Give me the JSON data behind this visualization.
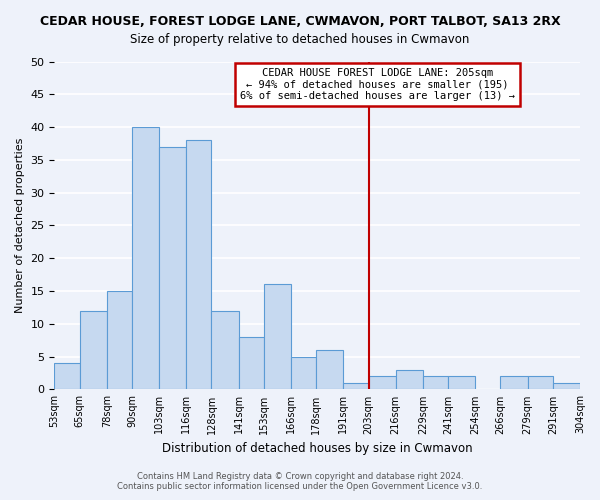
{
  "title": "CEDAR HOUSE, FOREST LODGE LANE, CWMAVON, PORT TALBOT, SA13 2RX",
  "subtitle": "Size of property relative to detached houses in Cwmavon",
  "xlabel": "Distribution of detached houses by size in Cwmavon",
  "ylabel": "Number of detached properties",
  "bar_edges": [
    53,
    65,
    78,
    90,
    103,
    116,
    128,
    141,
    153,
    166,
    178,
    191,
    203,
    216,
    229,
    241,
    254,
    266,
    279,
    291,
    304
  ],
  "bar_heights": [
    4,
    12,
    15,
    40,
    37,
    38,
    12,
    8,
    16,
    5,
    6,
    1,
    2,
    3,
    2,
    2,
    0,
    2,
    2,
    1
  ],
  "bar_color": "#c6d9f0",
  "bar_edgecolor": "#5b9bd5",
  "ylim": [
    0,
    50
  ],
  "yticks": [
    0,
    5,
    10,
    15,
    20,
    25,
    30,
    35,
    40,
    45,
    50
  ],
  "vline_x": 203,
  "vline_color": "#c00000",
  "annotation_title": "CEDAR HOUSE FOREST LODGE LANE: 205sqm",
  "annotation_line1": "← 94% of detached houses are smaller (195)",
  "annotation_line2": "6% of semi-detached houses are larger (13) →",
  "footnote1": "Contains HM Land Registry data © Crown copyright and database right 2024.",
  "footnote2": "Contains public sector information licensed under the Open Government Licence v3.0.",
  "background_color": "#eef2fa",
  "grid_color": "#ffffff",
  "tick_labels": [
    "53sqm",
    "65sqm",
    "78sqm",
    "90sqm",
    "103sqm",
    "116sqm",
    "128sqm",
    "141sqm",
    "153sqm",
    "166sqm",
    "178sqm",
    "191sqm",
    "203sqm",
    "216sqm",
    "229sqm",
    "241sqm",
    "254sqm",
    "266sqm",
    "279sqm",
    "291sqm",
    "304sqm"
  ]
}
